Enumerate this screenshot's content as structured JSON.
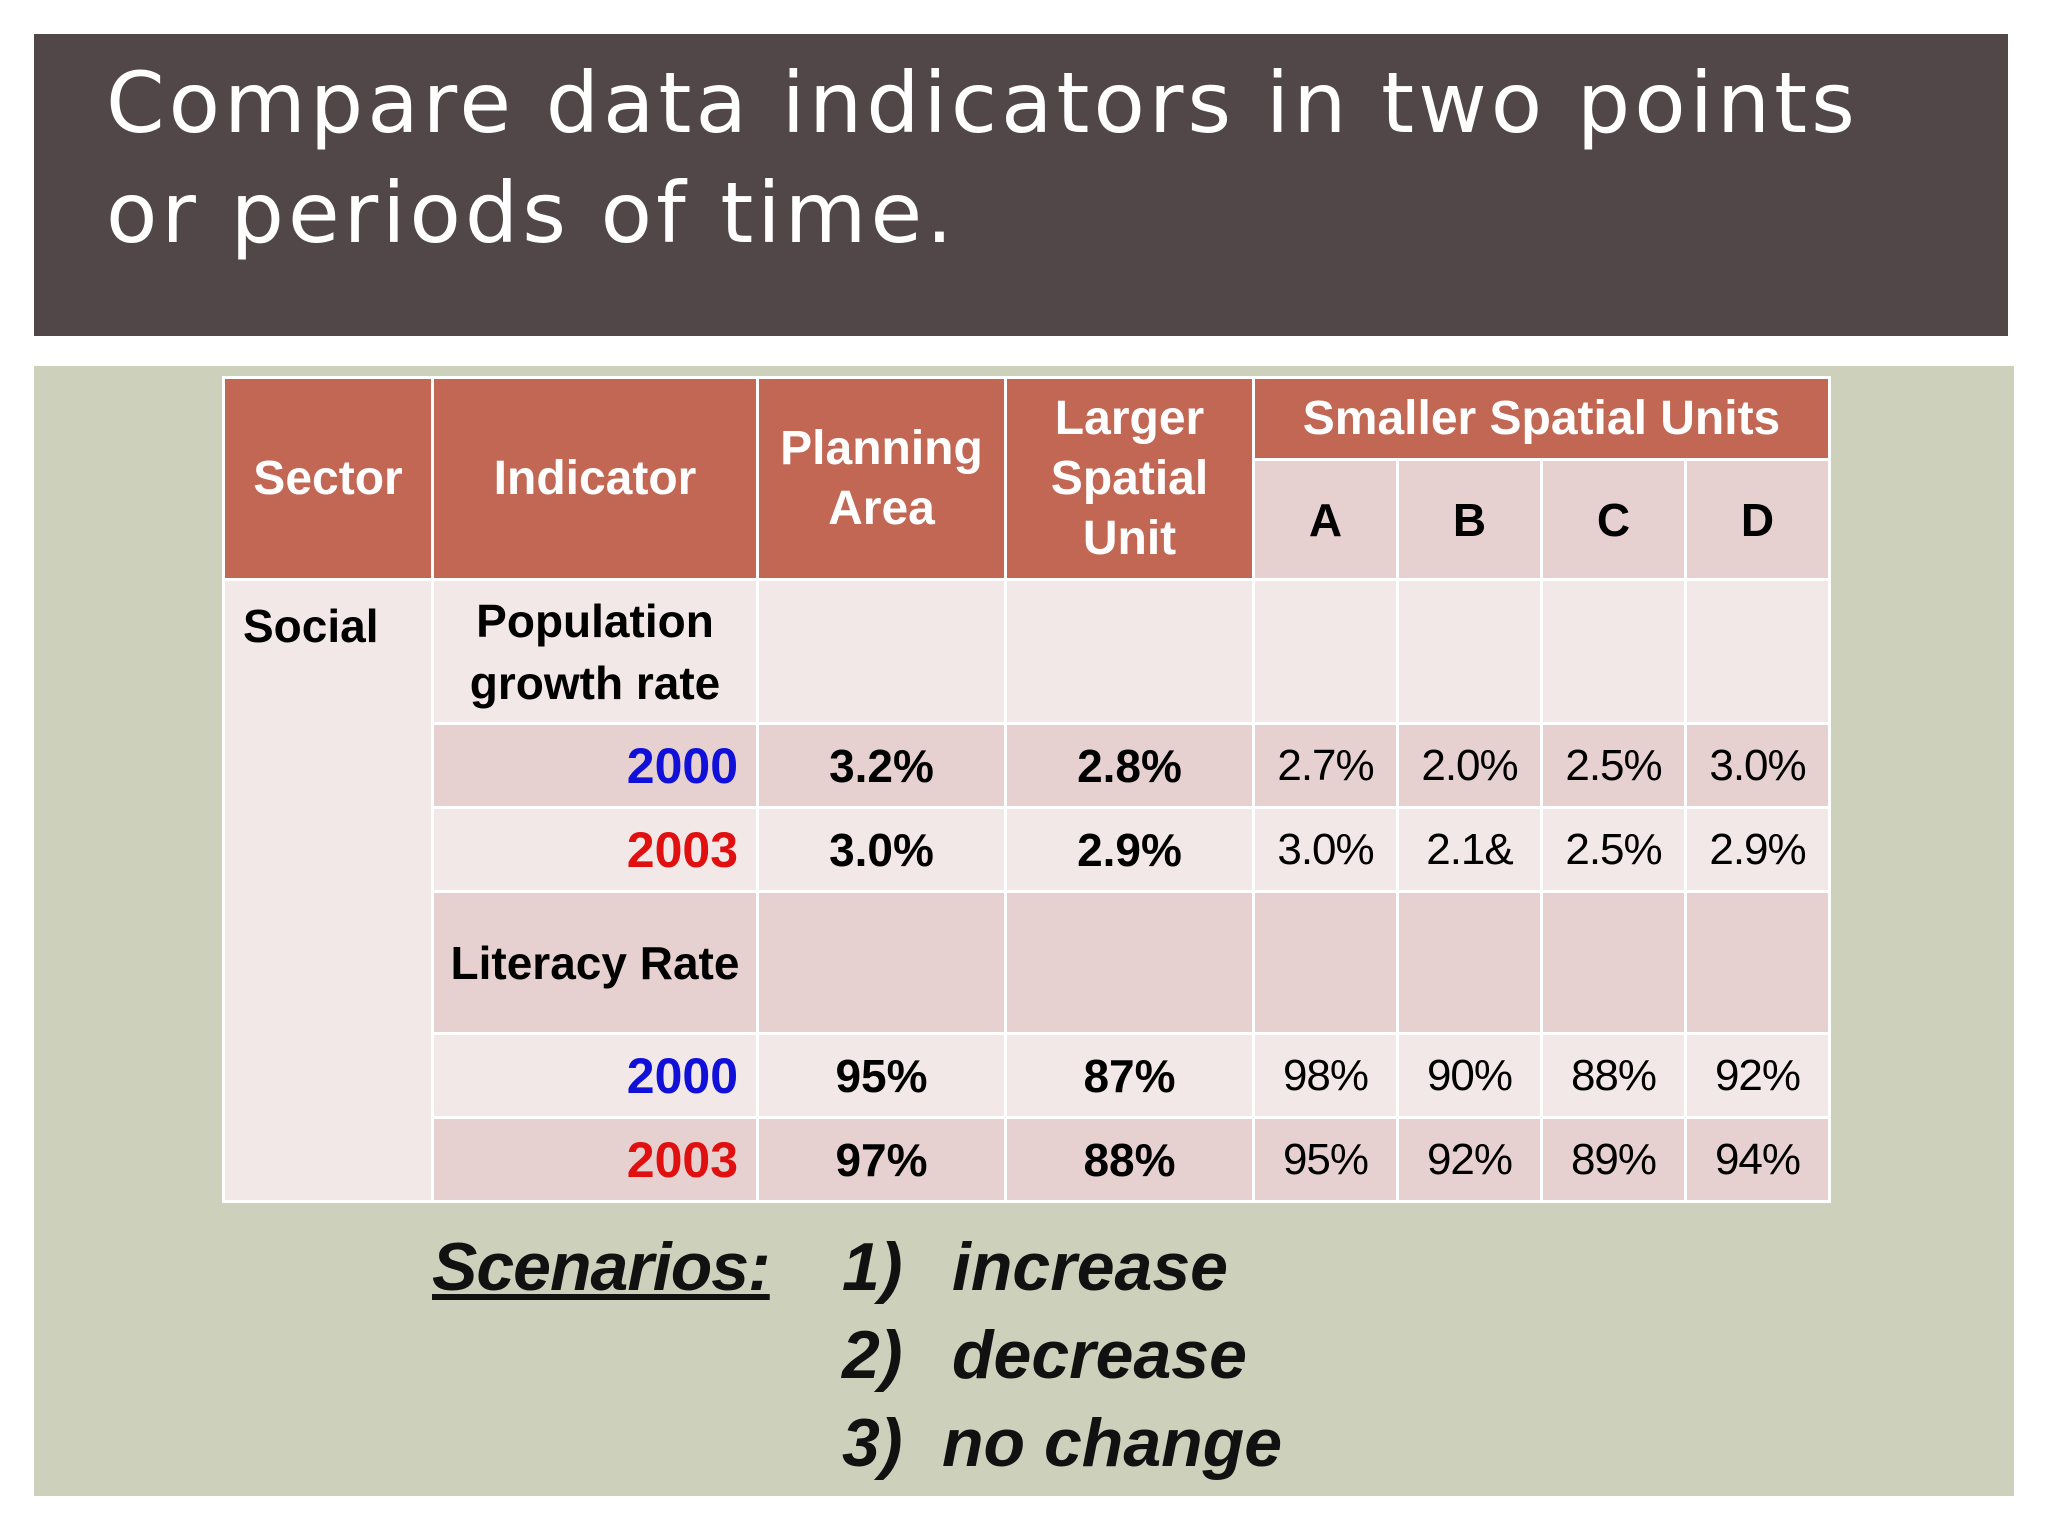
{
  "slide": {
    "title": "Compare data indicators in two points or periods of time."
  },
  "colors": {
    "title_bg": "#524748",
    "panel_bg": "#cdd0ba",
    "header_bg": "#c26753",
    "row_light": "#f3e8e8",
    "row_dark": "#e6d0d0",
    "year_2000": "#1010d8",
    "year_2003": "#e01010"
  },
  "table": {
    "headers": {
      "sector": "Sector",
      "indicator": "Indicator",
      "planning_area": "Planning Area",
      "larger_spatial_unit": "Larger Spatial Unit",
      "smaller_spatial_units": "Smaller Spatial Units",
      "units": [
        "A",
        "B",
        "C",
        "D"
      ]
    },
    "sector": "Social",
    "indicators": [
      {
        "name": "Population growth rate",
        "rows": [
          {
            "year": "2000",
            "planning_area": "3.2%",
            "larger_spatial_unit": "2.8%",
            "units": [
              "2.7%",
              "2.0%",
              "2.5%",
              "3.0%"
            ]
          },
          {
            "year": "2003",
            "planning_area": "3.0%",
            "larger_spatial_unit": "2.9%",
            "units": [
              "3.0%",
              "2.1&",
              "2.5%",
              "2.9%"
            ]
          }
        ]
      },
      {
        "name": "Literacy Rate",
        "rows": [
          {
            "year": "2000",
            "planning_area": "95%",
            "larger_spatial_unit": "87%",
            "units": [
              "98%",
              "90%",
              "88%",
              "92%"
            ]
          },
          {
            "year": "2003",
            "planning_area": "97%",
            "larger_spatial_unit": "88%",
            "units": [
              "95%",
              "92%",
              "89%",
              "94%"
            ]
          }
        ]
      }
    ]
  },
  "scenarios": {
    "label": "Scenarios:",
    "items": [
      {
        "num": "1)",
        "text": "increase"
      },
      {
        "num": "2)",
        "text": "decrease"
      },
      {
        "num": "3)",
        "text": "no change"
      }
    ]
  }
}
